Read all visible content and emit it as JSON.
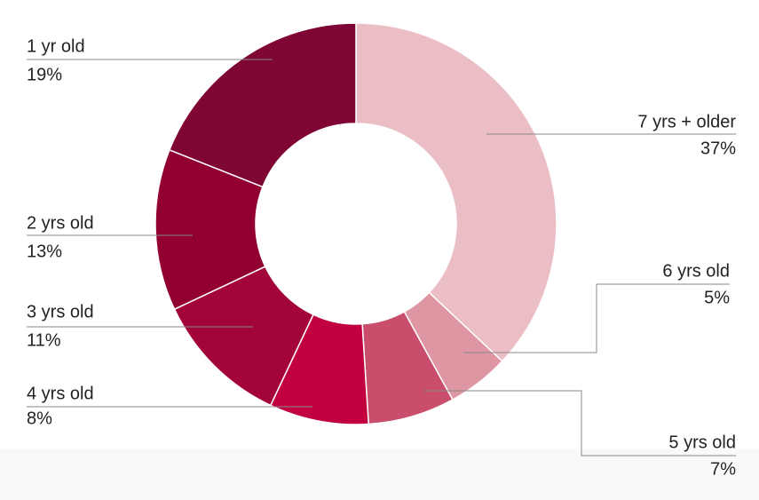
{
  "chart_data": {
    "type": "pie",
    "categories": [
      "7 yrs + older",
      "6 yrs old",
      "5 yrs old",
      "4 yrs old",
      "3 yrs old",
      "2 yrs old",
      "1 yr old"
    ],
    "values": [
      37,
      5,
      7,
      8,
      11,
      13,
      19
    ],
    "value_labels": [
      "37%",
      "5%",
      "7%",
      "8%",
      "11%",
      "13%",
      "19%"
    ],
    "colors": [
      "#ebbdc4",
      "#de97a2",
      "#c84e6c",
      "#c2003f",
      "#a3053a",
      "#920033",
      "#7f0534"
    ]
  }
}
